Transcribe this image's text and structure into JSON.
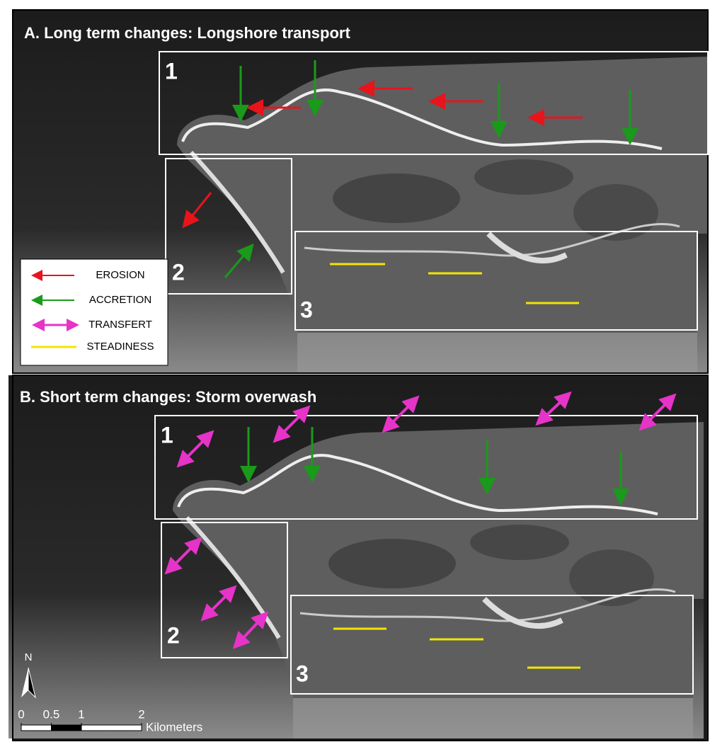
{
  "panels": [
    {
      "title": "A. Long term changes: Longshore transport",
      "boxes": [
        "1",
        "2",
        "3"
      ]
    },
    {
      "title": "B. Short term changes: Storm overwash",
      "boxes": [
        "1",
        "2",
        "3"
      ]
    }
  ],
  "legend": [
    "EROSION",
    "ACCRETION",
    "TRANSFERT",
    "STEADINESS"
  ],
  "north": "N",
  "scale_bar": {
    "ticks": [
      0,
      0.5,
      1,
      2
    ],
    "unit": "Kilometers"
  }
}
